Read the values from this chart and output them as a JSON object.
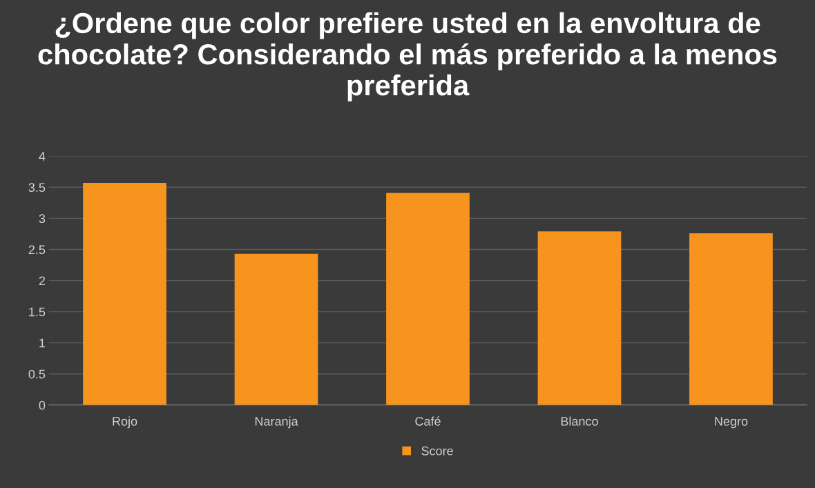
{
  "chart_data": {
    "type": "bar",
    "title": "¿Ordene que color prefiere usted en la envoltura de chocolate? Considerando el más preferido a la menos preferida",
    "categories": [
      "Rojo",
      "Naranja",
      "Café",
      "Blanco",
      "Negro"
    ],
    "series": [
      {
        "name": "Score",
        "color": "#f7941d",
        "values": [
          3.57,
          2.43,
          3.41,
          2.79,
          2.76
        ]
      }
    ],
    "ylim": [
      0,
      4
    ],
    "yticks": [
      0,
      0.5,
      1,
      1.5,
      2,
      2.5,
      3,
      3.5,
      4
    ],
    "grid": "y",
    "legend": "bottom"
  }
}
